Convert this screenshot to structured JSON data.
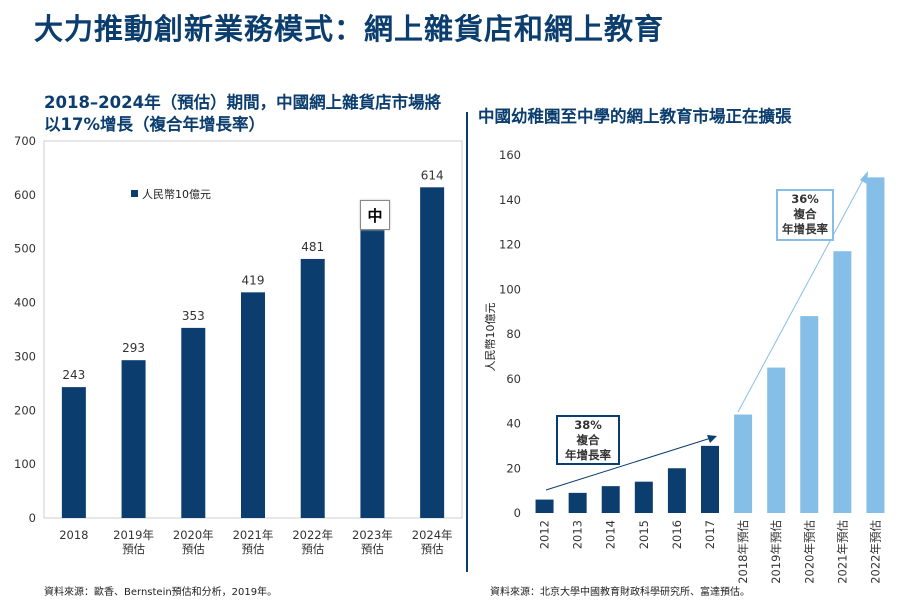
{
  "page": {
    "title": "大力推動創新業務模式：網上雜貨店和網上教育",
    "source_left": "資料來源：歐香、Bernstein預估和分析，2019年。",
    "source_right": "資料來源：北京大學中國教育財政科學研究所、富達預估。"
  },
  "left_chart": {
    "subtitle": "2018–2024年（預估）期間，中國網上雜貨店市場將以17%增長（複合年增長率）"
  },
  "right_chart": {
    "subtitle": "中國幼稚園至中學的網上教育市場正在擴張",
    "cagr_1": {
      "line1": "38%",
      "line2": "複合",
      "line3": "年增長率"
    },
    "cagr_2": {
      "line1": "36%",
      "line2": "複合",
      "line3": "年增長率"
    }
  },
  "ime_indicator": "中",
  "colors": {
    "navy": "#0b3d6e",
    "light_blue": "#85bfe8",
    "title": "#0b3d6e"
  },
  "chart_data": [
    {
      "type": "bar",
      "categories": [
        [
          "2018"
        ],
        [
          "2019年",
          "預估"
        ],
        [
          "2020年",
          "預估"
        ],
        [
          "2021年",
          "預估"
        ],
        [
          "2022年",
          "預估"
        ],
        [
          "2023年",
          "預估"
        ],
        [
          "2024年",
          "預估"
        ]
      ],
      "values": [
        243,
        293,
        353,
        419,
        481,
        545,
        614
      ],
      "data_labels": [
        "243",
        "293",
        "353",
        "419",
        "481",
        "",
        "614"
      ],
      "legend": "人民幣10億元",
      "legend_position": "top-left",
      "ylim": [
        0,
        700
      ],
      "yticks": [
        0,
        100,
        200,
        300,
        400,
        500,
        600,
        700
      ],
      "grid": false
    },
    {
      "type": "bar",
      "categories": [
        "2012",
        "2013",
        "2014",
        "2015",
        "2016",
        "2017",
        "2018年預估",
        "2019年預估",
        "2020年預估",
        "2021年預估",
        "2022年預估"
      ],
      "values": [
        6,
        9,
        12,
        14,
        20,
        30,
        44,
        65,
        88,
        117,
        150
      ],
      "estimated_from_index": 6,
      "ylabel": "人民幣10億元",
      "ylim": [
        0,
        160
      ],
      "yticks": [
        0,
        20,
        40,
        60,
        80,
        100,
        120,
        140,
        160
      ],
      "grid": false
    }
  ]
}
